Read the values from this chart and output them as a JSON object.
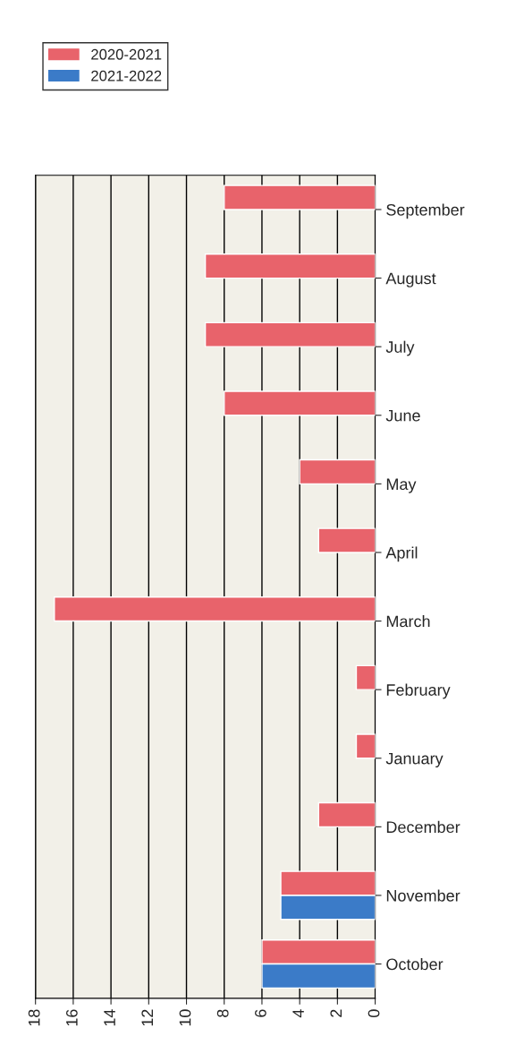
{
  "chart_data": {
    "type": "bar",
    "orientation": "horizontal",
    "categories": [
      "September",
      "August",
      "July",
      "June",
      "May",
      "April",
      "March",
      "February",
      "January",
      "December",
      "November",
      "October"
    ],
    "series": [
      {
        "name": "2020-2021",
        "color": "#e8636b",
        "values": [
          8,
          9,
          9,
          8,
          4,
          3,
          17,
          1,
          1,
          3,
          5,
          6
        ]
      },
      {
        "name": "2021-2022",
        "color": "#3b7bc8",
        "values": [
          null,
          null,
          null,
          null,
          null,
          null,
          null,
          null,
          null,
          null,
          5,
          6
        ]
      }
    ],
    "xlim": [
      18,
      0
    ],
    "xticks": [
      18,
      16,
      14,
      12,
      10,
      8,
      6,
      4,
      2,
      0
    ],
    "grid": "x",
    "legend": "top left"
  }
}
